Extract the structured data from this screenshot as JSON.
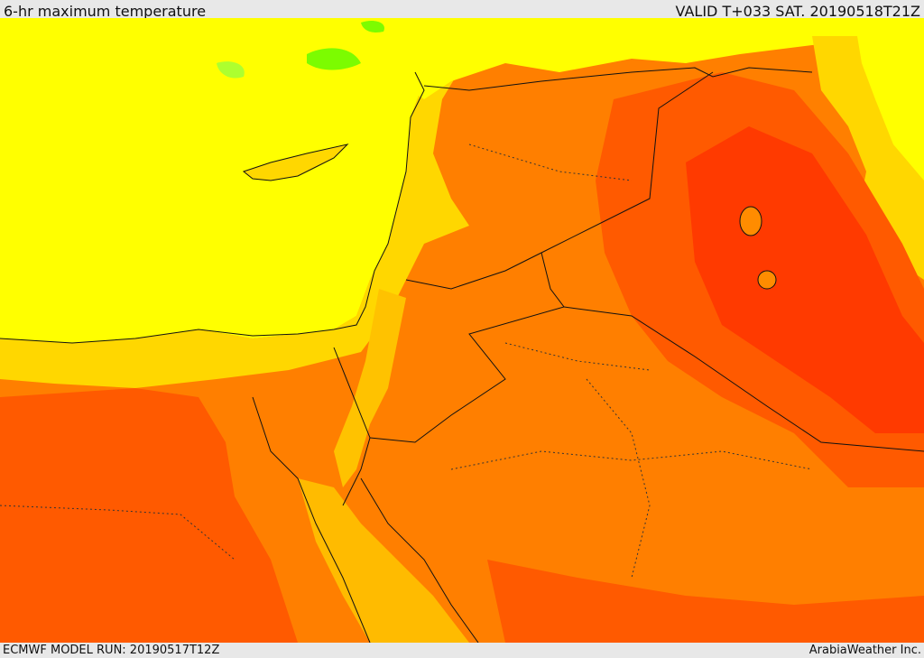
{
  "header": {
    "title": "6-hr maximum temperature",
    "valid": "VALID T+033 SAT. 20190518T21Z"
  },
  "footer": {
    "model_run": "ECMWF MODEL RUN: 20190517T12Z",
    "credit": "ArabiaWeather Inc."
  },
  "colors": {
    "sea": "#ffff00",
    "cool": "#ffd700",
    "warm": "#ffa500",
    "hot": "#ff8c00",
    "hotter": "#ff5a00",
    "hottest": "#ff3a00",
    "green": "#7cfc00",
    "border": "#111111"
  }
}
